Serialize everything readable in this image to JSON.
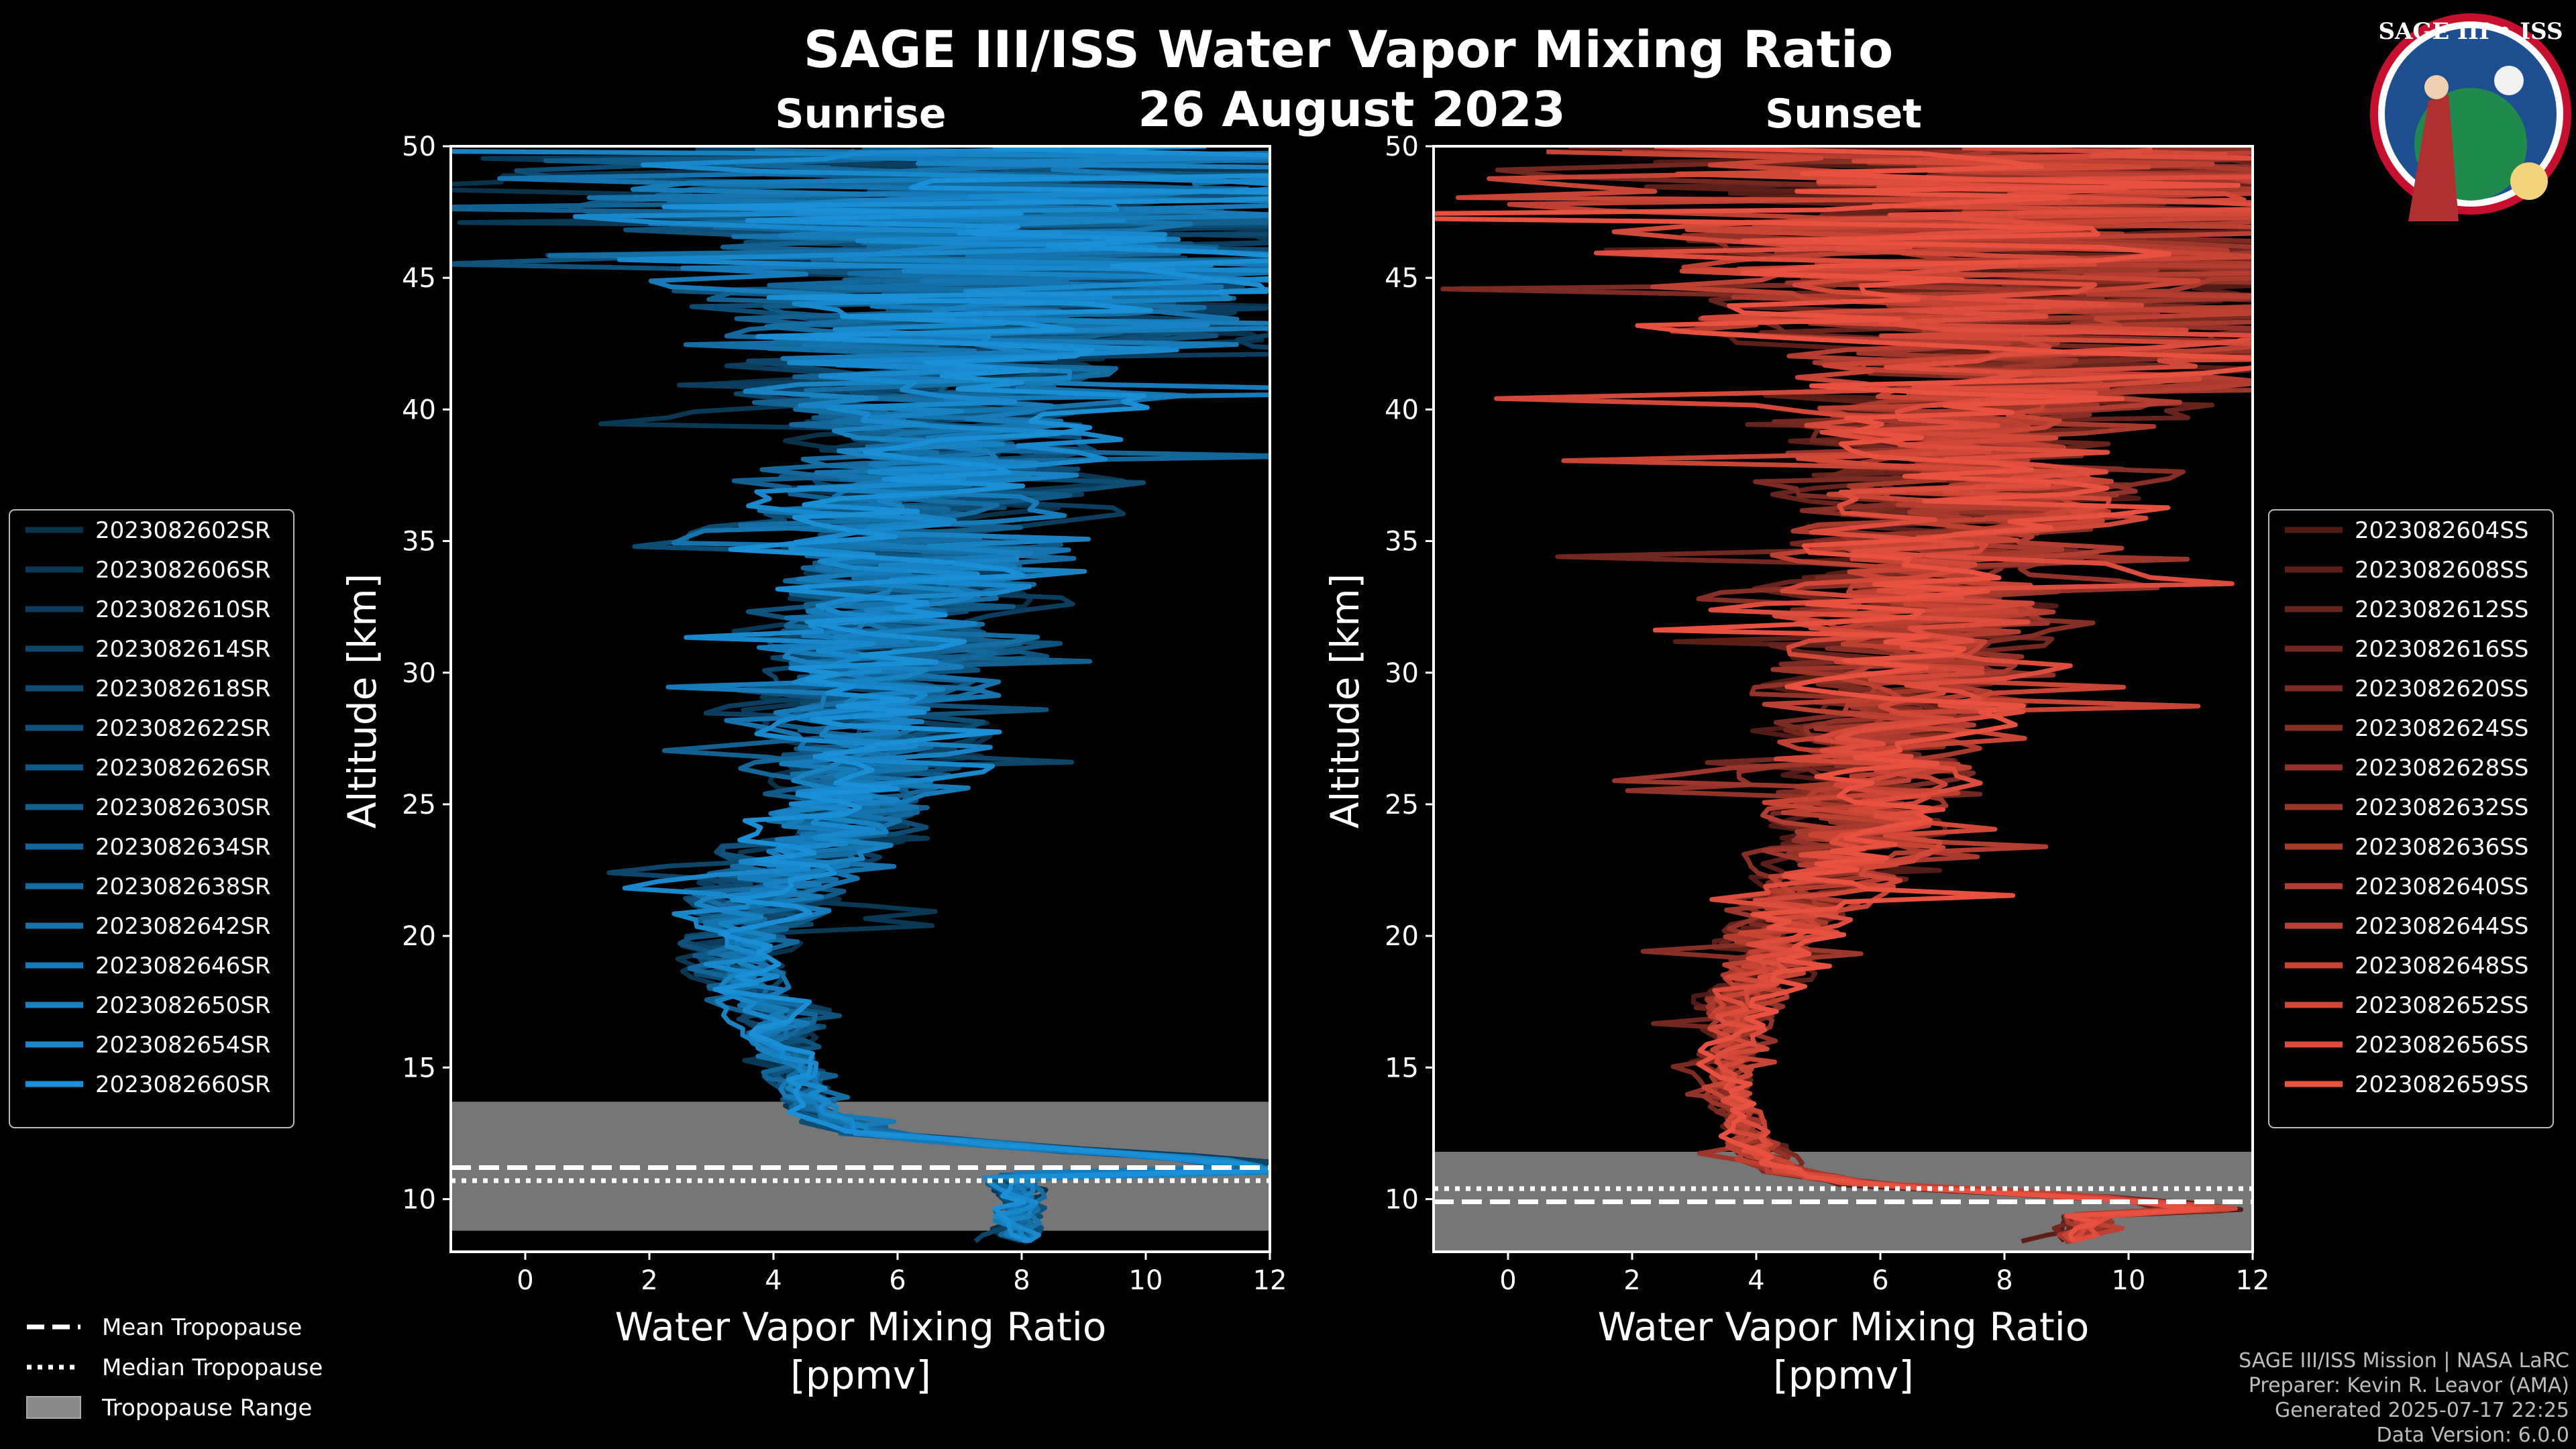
{
  "title": "SAGE III/ISS Water Vapor Mixing Ratio",
  "date": "26 August 2023",
  "logo": {
    "text": "SAGE III • ISS",
    "colors": {
      "ring": "#c8102e",
      "inner": "#1d4f91"
    }
  },
  "chart_data": [
    {
      "type": "line",
      "subtitle": "Sunrise",
      "xlabel": "Water Vapor Mixing Ratio",
      "xlabel2": "[ppmv]",
      "ylabel": "Altitude [km]",
      "xlim": [
        -1.2,
        12
      ],
      "ylim": [
        8,
        50
      ],
      "xticks": [
        "0",
        "2",
        "4",
        "6",
        "8",
        "10",
        "12"
      ],
      "yticks": [
        "10",
        "15",
        "20",
        "25",
        "30",
        "35",
        "40",
        "45",
        "50"
      ],
      "color": "#1a8fd6",
      "tropopause": {
        "mean": 11.2,
        "median": 10.7,
        "range": [
          8.8,
          13.7
        ]
      },
      "series_names": [
        "2023082602SR",
        "2023082606SR",
        "2023082610SR",
        "2023082614SR",
        "2023082618SR",
        "2023082622SR",
        "2023082626SR",
        "2023082630SR",
        "2023082634SR",
        "2023082638SR",
        "2023082642SR",
        "2023082646SR",
        "2023082650SR",
        "2023082654SR",
        "2023082660SR"
      ],
      "profile_center": [
        [
          12,
          11
        ],
        [
          11,
          11.5
        ],
        [
          8,
          12
        ],
        [
          5.5,
          12.5
        ],
        [
          4.5,
          13.5
        ],
        [
          4.3,
          15
        ],
        [
          4.2,
          16
        ],
        [
          4.0,
          17
        ],
        [
          3.6,
          18
        ],
        [
          3.4,
          19
        ],
        [
          3.4,
          20
        ],
        [
          3.6,
          21
        ],
        [
          4.0,
          22
        ],
        [
          4.4,
          23
        ],
        [
          4.8,
          24
        ],
        [
          5.2,
          25
        ],
        [
          5.5,
          26
        ],
        [
          5.7,
          28
        ],
        [
          5.9,
          30
        ],
        [
          6.1,
          32
        ],
        [
          6.3,
          34
        ],
        [
          6.5,
          36
        ],
        [
          6.7,
          38
        ],
        [
          6.9,
          40
        ],
        [
          7.1,
          42
        ],
        [
          7.3,
          44
        ],
        [
          7.5,
          46
        ],
        [
          7.7,
          48
        ],
        [
          7.9,
          50
        ]
      ]
    },
    {
      "type": "line",
      "subtitle": "Sunset",
      "xlabel": "Water Vapor Mixing Ratio",
      "xlabel2": "[ppmv]",
      "ylabel": "Altitude [km]",
      "xlim": [
        -1.2,
        12
      ],
      "ylim": [
        8,
        50
      ],
      "xticks": [
        "0",
        "2",
        "4",
        "6",
        "8",
        "10",
        "12"
      ],
      "yticks": [
        "10",
        "15",
        "20",
        "25",
        "30",
        "35",
        "40",
        "45",
        "50"
      ],
      "color": "#e8503f",
      "tropopause": {
        "mean": 9.9,
        "median": 10.4,
        "range": [
          8.0,
          11.8
        ]
      },
      "series_names": [
        "2023082604SS",
        "2023082608SS",
        "2023082612SS",
        "2023082616SS",
        "2023082620SS",
        "2023082624SS",
        "2023082628SS",
        "2023082632SS",
        "2023082636SS",
        "2023082640SS",
        "2023082644SS",
        "2023082648SS",
        "2023082652SS",
        "2023082656SS",
        "2023082659SS"
      ],
      "profile_center": [
        [
          12,
          9.5
        ],
        [
          10,
          10
        ],
        [
          6,
          10.5
        ],
        [
          4.5,
          11
        ],
        [
          4.0,
          12
        ],
        [
          3.8,
          13
        ],
        [
          3.6,
          14
        ],
        [
          3.5,
          15
        ],
        [
          3.6,
          16
        ],
        [
          3.7,
          17
        ],
        [
          3.9,
          18
        ],
        [
          4.1,
          19
        ],
        [
          4.4,
          20
        ],
        [
          4.8,
          21
        ],
        [
          5.1,
          22
        ],
        [
          5.4,
          23
        ],
        [
          5.6,
          24
        ],
        [
          5.8,
          26
        ],
        [
          6.0,
          28
        ],
        [
          6.3,
          30
        ],
        [
          6.6,
          32
        ],
        [
          6.9,
          34
        ],
        [
          7.2,
          36
        ],
        [
          7.5,
          38
        ],
        [
          7.8,
          40
        ],
        [
          8.1,
          42
        ],
        [
          8.4,
          44
        ],
        [
          8.7,
          46
        ],
        [
          9.0,
          48
        ],
        [
          9.3,
          50
        ]
      ]
    }
  ],
  "legend_bottom": [
    {
      "label": "Mean Tropopause",
      "style": "dashed"
    },
    {
      "label": "Median Tropopause",
      "style": "dotted"
    },
    {
      "label": "Tropopause Range",
      "style": "patch"
    }
  ],
  "credits": [
    "SAGE III/ISS Mission | NASA LaRC",
    "Preparer: Kevin R. Leavor (AMA)",
    "Generated 2025-07-17 22:25",
    "Data Version: 6.0.0"
  ]
}
